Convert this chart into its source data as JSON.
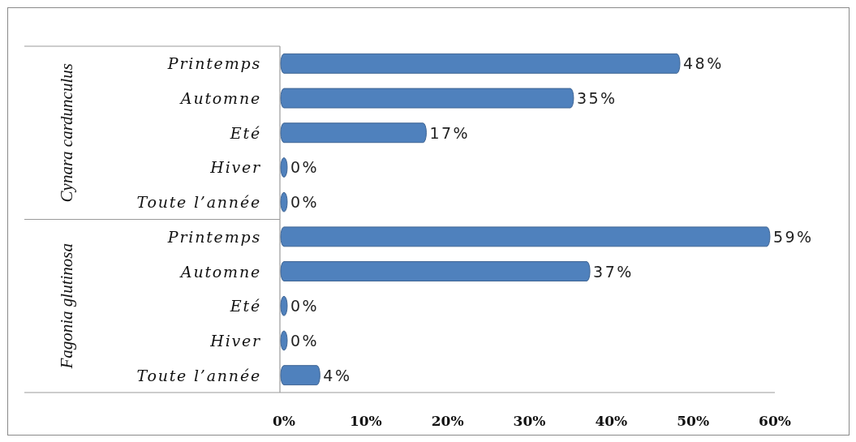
{
  "chart_data": [
    {
      "type": "bar",
      "orientation": "horizontal",
      "ylabel": "Cynara cardunculus",
      "categories": [
        "Printemps",
        "Automne",
        "Eté",
        "Hiver",
        "Toute l’année"
      ],
      "values": [
        48,
        35,
        17,
        0,
        0
      ],
      "value_labels": [
        "48%",
        "35%",
        "17%",
        "0%",
        "0%"
      ],
      "color": "#4f81bd",
      "xlim": [
        0,
        60
      ],
      "tick_labels": "y"
    },
    {
      "type": "bar",
      "orientation": "horizontal",
      "ylabel": "Fagonia glutinosa",
      "categories": [
        "Printemps",
        "Automne",
        "Eté",
        "Hiver",
        "Toute l’année"
      ],
      "values": [
        59,
        37,
        0,
        0,
        4
      ],
      "value_labels": [
        "59%",
        "37%",
        "0%",
        "0%",
        "4%"
      ],
      "color": "#4f81bd",
      "xlim": [
        0,
        60
      ],
      "xticks": [
        {
          "value": 0,
          "label": "0%"
        },
        {
          "value": 10,
          "label": "10%"
        },
        {
          "value": 20,
          "label": "20%"
        },
        {
          "value": 30,
          "label": "30%"
        },
        {
          "value": 40,
          "label": "40%"
        },
        {
          "value": 50,
          "label": "50%"
        },
        {
          "value": 60,
          "label": "60%"
        }
      ]
    }
  ]
}
